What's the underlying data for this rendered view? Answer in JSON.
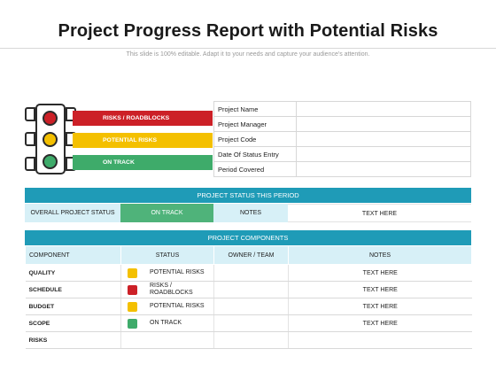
{
  "header": {
    "title": "Project Progress Report with Potential Risks",
    "subtitle": "This slide is 100% editable. Adapt it to your needs and capture your audience's attention."
  },
  "colors": {
    "red": "#cc2027",
    "yellow": "#f4c000",
    "green": "#3eab6a",
    "teal": "#1f9bb7",
    "light_blue": "#d7f0f7",
    "on_track_cell": "#4fb37a"
  },
  "legend": {
    "red": "RISKS / ROADBLOCKS",
    "yellow": "POTENTIAL RISKS",
    "green": "ON TRACK"
  },
  "info": {
    "rows": [
      {
        "label": "Project Name",
        "value": ""
      },
      {
        "label": "Project Manager",
        "value": ""
      },
      {
        "label": "Project Code",
        "value": ""
      },
      {
        "label": "Date Of Status Entry",
        "value": ""
      },
      {
        "label": "Period Covered",
        "value": ""
      }
    ]
  },
  "status_period": {
    "heading": "PROJECT STATUS THIS PERIOD",
    "label": "OVERALL PROJECT STATUS",
    "status": "ON TRACK",
    "notes_label": "NOTES",
    "notes_value": "TEXT HERE"
  },
  "components": {
    "heading": "PROJECT COMPONENTS",
    "columns": [
      "COMPONENT",
      "STATUS",
      "OWNER / TEAM",
      "NOTES"
    ],
    "rows": [
      {
        "name": "QUALITY",
        "status_color": "#f4c000",
        "status": "POTENTIAL RISKS",
        "owner": "",
        "notes": "TEXT HERE"
      },
      {
        "name": "SCHEDULE",
        "status_color": "#cc2027",
        "status": "RISKS / ROADBLOCKS",
        "owner": "",
        "notes": "TEXT HERE"
      },
      {
        "name": "BUDGET",
        "status_color": "#f4c000",
        "status": "POTENTIAL RISKS",
        "owner": "",
        "notes": "TEXT HERE"
      },
      {
        "name": "SCOPE",
        "status_color": "#3eab6a",
        "status": "ON TRACK",
        "owner": "",
        "notes": "TEXT HERE"
      },
      {
        "name": "RISKS",
        "status_color": "",
        "status": "",
        "owner": "",
        "notes": ""
      }
    ]
  }
}
